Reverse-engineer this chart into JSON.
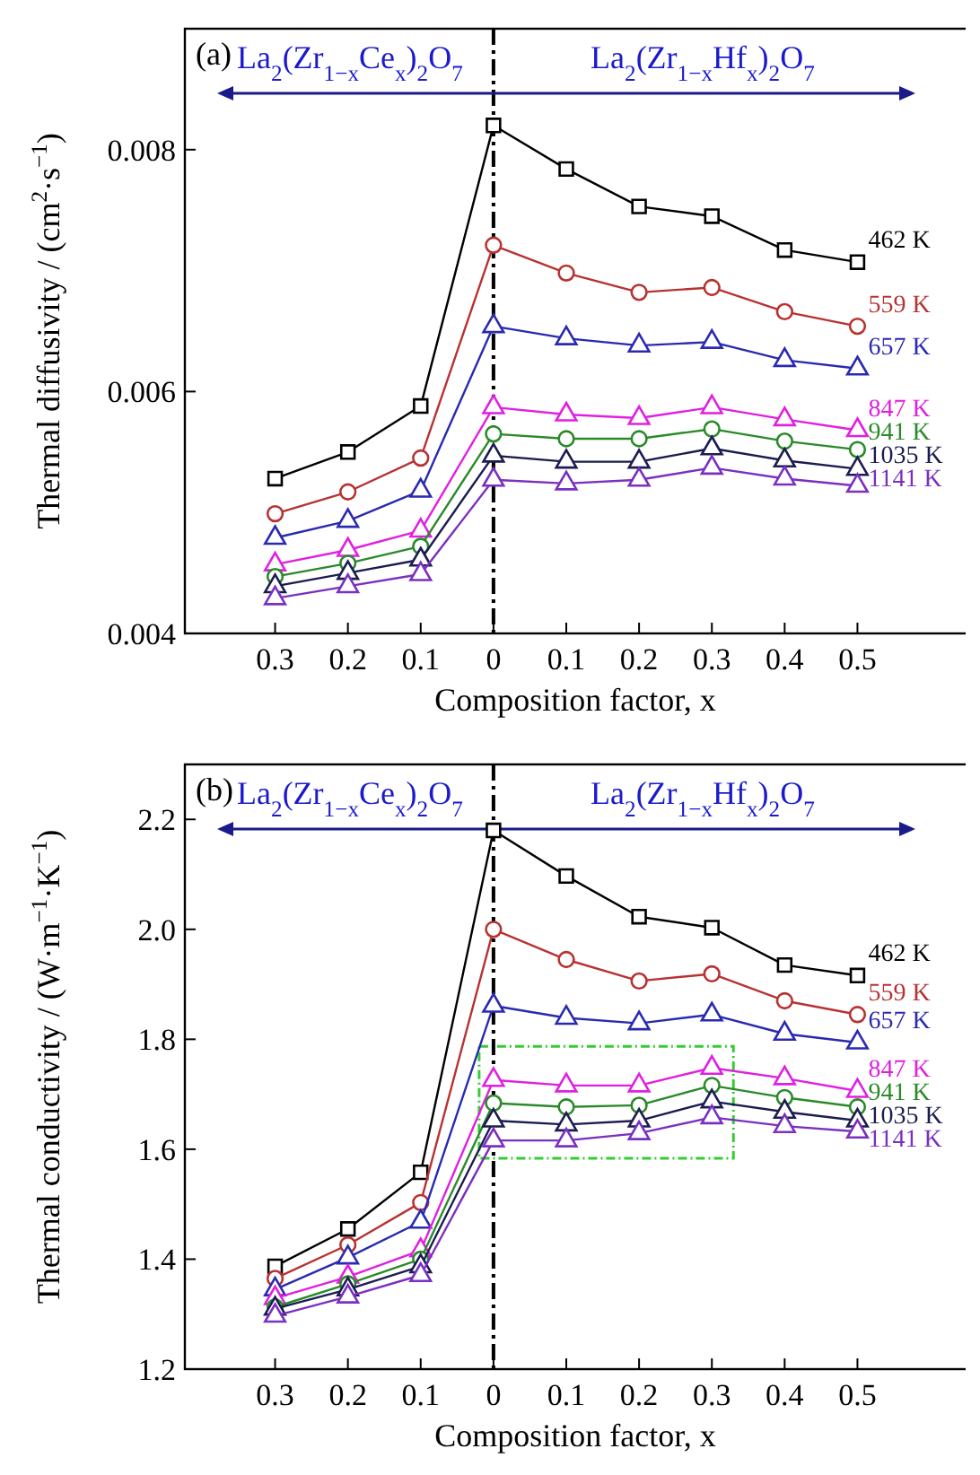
{
  "chart_data": [
    {
      "type": "line",
      "title": "(a)",
      "xlabel": "Composition factor, x",
      "ylabel": "Thermal diffusivity / (cm$^{2}$·s$^{−1}$)",
      "categories": [
        "0.3",
        "0.2",
        "0.1",
        "0",
        "0.1",
        "0.2",
        "0.3",
        "0.4",
        "0.5"
      ],
      "ylim": [
        0.004,
        0.009
      ],
      "yticks": [
        {
          "value": 0.004,
          "label": "0.004"
        },
        {
          "value": 0.006,
          "label": "0.006"
        },
        {
          "value": 0.008,
          "label": "0.008"
        }
      ],
      "annotations": [
        "La$_{2}$(Zr$_{1−x}$Ce$_{x}$)$_{2}$O$_{7}$",
        "La$_{2}$(Zr$_{1−x}$Hf$_{x}$)$_{2}$O$_{7}$"
      ],
      "ref_lines": [
        {
          "axis": "x",
          "value": "0",
          "color": "#000000",
          "line_style": "dashed"
        }
      ],
      "series": [
        {
          "name": "462 K",
          "color": "#000000",
          "marker": "square",
          "values": [
            0.00528,
            0.0055,
            0.00588,
            0.0082,
            0.00784,
            0.00753,
            0.00745,
            0.00717,
            0.00707
          ]
        },
        {
          "name": "559 K",
          "color": "#b83232",
          "marker": "circle",
          "values": [
            0.00499,
            0.00517,
            0.00545,
            0.00721,
            0.00698,
            0.00682,
            0.00686,
            0.00666,
            0.00654
          ]
        },
        {
          "name": "657 K",
          "color": "#2a2ab0",
          "marker": "triangle",
          "values": [
            0.00479,
            0.00493,
            0.00518,
            0.00654,
            0.00644,
            0.00638,
            0.00641,
            0.00626,
            0.00619
          ]
        },
        {
          "name": "847 K",
          "color": "#e020e0",
          "marker": "triangle",
          "values": [
            0.00457,
            0.00469,
            0.00485,
            0.00587,
            0.00581,
            0.00578,
            0.00587,
            0.00577,
            0.00568
          ]
        },
        {
          "name": "941 K",
          "color": "#2a8a2a",
          "marker": "circle",
          "values": [
            0.00447,
            0.00458,
            0.00472,
            0.00565,
            0.00561,
            0.00561,
            0.00569,
            0.00559,
            0.00552
          ]
        },
        {
          "name": "1035 K",
          "color": "#1c1c50",
          "marker": "triangle",
          "values": [
            0.00439,
            0.0045,
            0.00461,
            0.00547,
            0.00542,
            0.00542,
            0.00553,
            0.00543,
            0.00536
          ]
        },
        {
          "name": "1141 K",
          "color": "#7a30c0",
          "marker": "triangle",
          "values": [
            0.00429,
            0.00439,
            0.00449,
            0.00527,
            0.00524,
            0.00527,
            0.00537,
            0.00528,
            0.00522
          ]
        }
      ]
    },
    {
      "type": "line",
      "title": "(b)",
      "xlabel": "Composition factor, x",
      "ylabel": "Thermal conductivity / (W·m$^{−1}$·K$^{−1}$)",
      "categories": [
        "0.3",
        "0.2",
        "0.1",
        "0",
        "0.1",
        "0.2",
        "0.3",
        "0.4",
        "0.5"
      ],
      "ylim": [
        1.2,
        2.3
      ],
      "yticks": [
        {
          "value": 1.2,
          "label": "1.2"
        },
        {
          "value": 1.4,
          "label": "1.4"
        },
        {
          "value": 1.6,
          "label": "1.6"
        },
        {
          "value": 1.8,
          "label": "1.8"
        },
        {
          "value": 2.0,
          "label": "2.0"
        },
        {
          "value": 2.2,
          "label": "2.2"
        }
      ],
      "annotations": [
        "La$_{2}$(Zr$_{1−x}$Ce$_{x}$)$_{2}$O$_{7}$",
        "La$_{2}$(Zr$_{1−x}$Hf$_{x}$)$_{2}$O$_{7}$"
      ],
      "ref_lines": [
        {
          "axis": "x",
          "value": "0",
          "color": "#000000",
          "line_style": "dashed"
        }
      ],
      "series": [
        {
          "name": "462 K",
          "color": "#000000",
          "marker": "square",
          "values": [
            1.387,
            1.455,
            1.558,
            2.18,
            2.097,
            2.023,
            2.003,
            1.935,
            1.916
          ]
        },
        {
          "name": "559 K",
          "color": "#b83232",
          "marker": "circle",
          "values": [
            1.365,
            1.426,
            1.503,
            2.0,
            1.945,
            1.906,
            1.919,
            1.87,
            1.845
          ]
        },
        {
          "name": "657 K",
          "color": "#2a2ab0",
          "marker": "triangle",
          "values": [
            1.345,
            1.403,
            1.468,
            1.861,
            1.839,
            1.829,
            1.845,
            1.81,
            1.794
          ]
        },
        {
          "name": "847 K",
          "color": "#e020e0",
          "marker": "triangle",
          "values": [
            1.329,
            1.368,
            1.416,
            1.726,
            1.716,
            1.716,
            1.748,
            1.729,
            1.706
          ]
        },
        {
          "name": "941 K",
          "color": "#2a8a2a",
          "marker": "circle",
          "values": [
            1.313,
            1.355,
            1.4,
            1.684,
            1.677,
            1.68,
            1.716,
            1.694,
            1.677
          ]
        },
        {
          "name": "1035 K",
          "color": "#1c1c50",
          "marker": "triangle",
          "values": [
            1.31,
            1.345,
            1.387,
            1.652,
            1.645,
            1.652,
            1.687,
            1.668,
            1.652
          ]
        },
        {
          "name": "1141 K",
          "color": "#7a30c0",
          "marker": "triangle",
          "values": [
            1.297,
            1.332,
            1.371,
            1.616,
            1.616,
            1.629,
            1.658,
            1.642,
            1.632
          ]
        }
      ]
    }
  ]
}
